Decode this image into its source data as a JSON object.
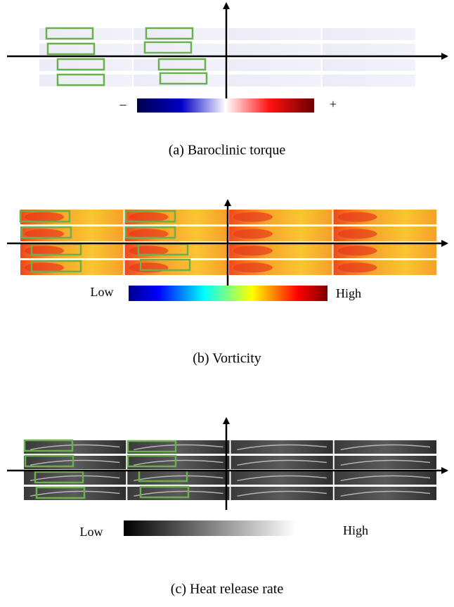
{
  "panels": [
    {
      "caption": "(a) Baroclinic torque",
      "colorbar": {
        "low_label": "–",
        "high_label": "+"
      }
    },
    {
      "caption": "(b) Vorticity",
      "colorbar": {
        "low_label": "Low",
        "high_label": "High"
      }
    },
    {
      "caption": "(c) Heat release rate",
      "colorbar": {
        "low_label": "Low",
        "high_label": "High"
      }
    }
  ]
}
